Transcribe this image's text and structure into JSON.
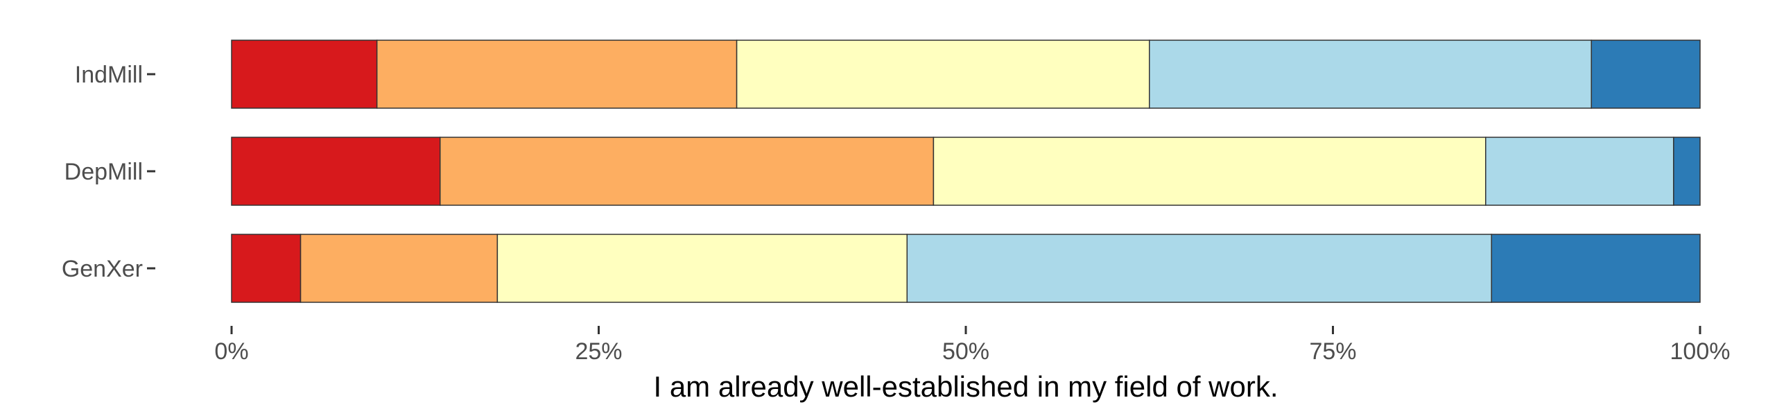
{
  "chart_data": {
    "type": "bar",
    "orientation": "horizontal",
    "stacked": true,
    "normalized": true,
    "categories": [
      "IndMill",
      "DepMill",
      "GenXer"
    ],
    "segment_colors": [
      "#d7191c",
      "#fdae61",
      "#ffffbf",
      "#abd9e9",
      "#2c7bb6"
    ],
    "segments": {
      "IndMill": [
        9.9,
        24.5,
        28.1,
        30.1,
        7.4
      ],
      "DepMill": [
        14.2,
        33.6,
        37.6,
        12.8,
        1.8
      ],
      "GenXer": [
        4.7,
        13.4,
        27.9,
        39.8,
        14.2
      ]
    },
    "x_ticks": [
      0,
      25,
      50,
      75,
      100
    ],
    "x_tick_labels": [
      "0%",
      "25%",
      "50%",
      "75%",
      "100%"
    ],
    "xlim": [
      0,
      100
    ],
    "xlabel": "I am already well-established in my field of work.",
    "grid": false,
    "legend": "none"
  }
}
